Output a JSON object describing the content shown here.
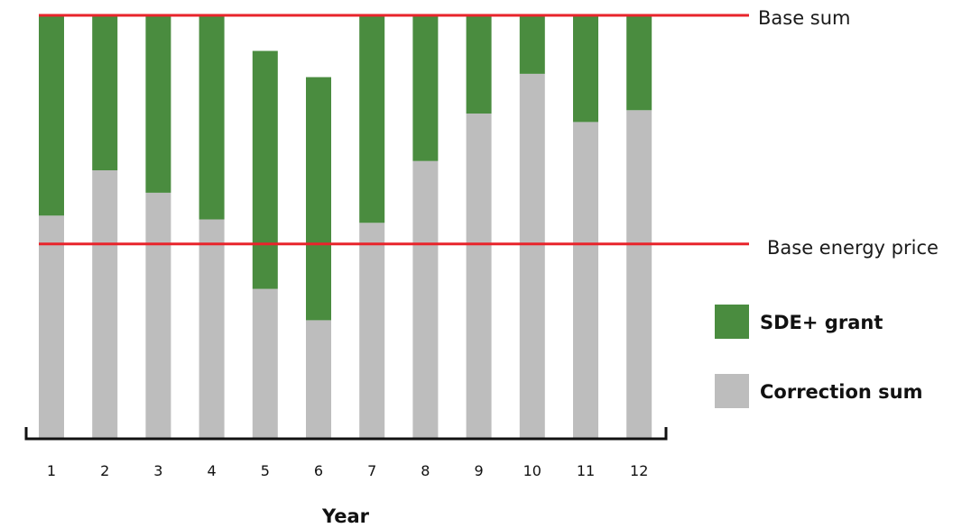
{
  "chart_data": {
    "type": "bar",
    "stacked": true,
    "xlabel": "Year",
    "ylabel": "",
    "ylim": [
      0,
      100
    ],
    "categories": [
      "1",
      "2",
      "3",
      "4",
      "5",
      "6",
      "7",
      "8",
      "9",
      "10",
      "11",
      "12"
    ],
    "series": [
      {
        "name": "Correction sum",
        "color": "#bdbdbd",
        "values": [
          52.7,
          63.4,
          58.1,
          51.8,
          35.4,
          28.0,
          51.0,
          65.6,
          76.8,
          86.2,
          74.8,
          77.6
        ]
      },
      {
        "name": "SDE+ grant",
        "color": "#4a8c3f",
        "values": [
          47.3,
          36.6,
          41.9,
          48.2,
          56.2,
          57.4,
          49.0,
          34.4,
          23.2,
          13.8,
          25.2,
          22.4
        ]
      }
    ],
    "reference_lines": [
      {
        "label": "Base sum",
        "value": 100,
        "color": "#e8242b"
      },
      {
        "label": "Base energy price",
        "value": 46.0,
        "color": "#e8242b"
      }
    ],
    "legend_position": "right",
    "grid": false
  }
}
